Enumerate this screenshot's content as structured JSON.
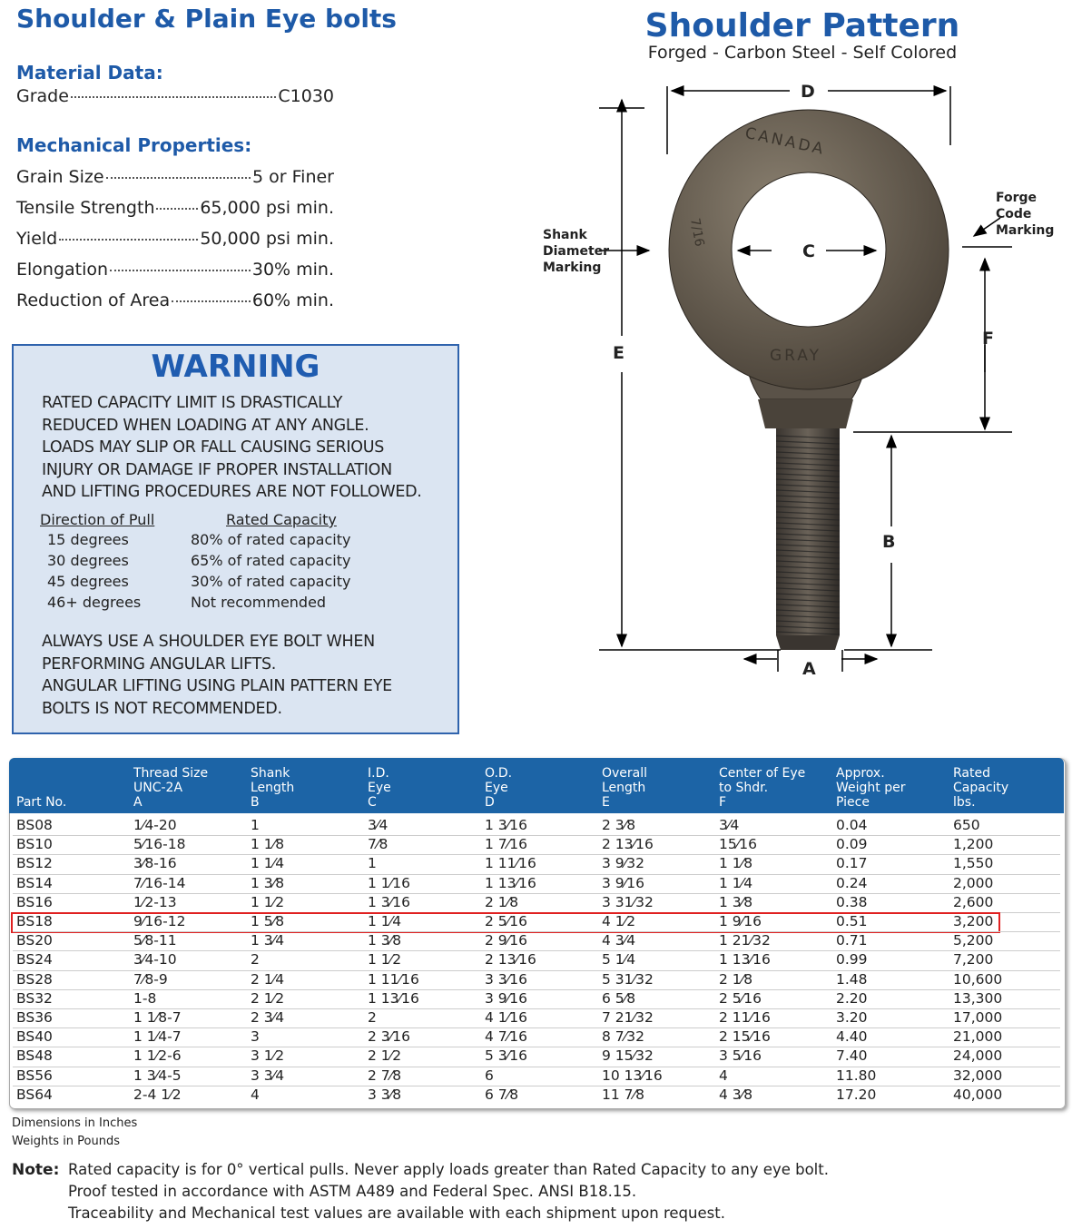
{
  "header": {
    "title": "Shoulder & Plain Eye bolts"
  },
  "material": {
    "heading": "Material Data:",
    "rows": [
      [
        "Grade",
        "C1030"
      ]
    ]
  },
  "mechanical": {
    "heading": "Mechanical Properties:",
    "rows": [
      [
        "Grain Size",
        "5 or Finer"
      ],
      [
        "Tensile Strength",
        "65,000 psi min."
      ],
      [
        "Yield",
        "50,000 psi min."
      ],
      [
        "Elongation",
        "30% min."
      ],
      [
        "Reduction of Area",
        "60% min."
      ]
    ]
  },
  "warning": {
    "title": "WARNING",
    "text": [
      "RATED CAPACITY LIMIT IS DRASTICALLY",
      "REDUCED WHEN LOADING AT ANY ANGLE.",
      "LOADS MAY SLIP OR FALL CAUSING SERIOUS",
      "INJURY OR DAMAGE IF PROPER INSTALLATION",
      "AND LIFTING PROCEDURES ARE NOT FOLLOWED."
    ],
    "columns": [
      "Direction of Pull",
      "Rated Capacity"
    ],
    "rows": [
      [
        "15 degrees",
        "80% of rated capacity"
      ],
      [
        "30 degrees",
        "65% of rated capacity"
      ],
      [
        "45 degrees",
        "30% of rated capacity"
      ],
      [
        "46+ degrees",
        "Not recommended"
      ]
    ],
    "footer": [
      "ALWAYS USE A SHOULDER EYE BOLT WHEN",
      "PERFORMING ANGULAR LIFTS.",
      "ANGULAR LIFTING USING PLAIN PATTERN EYE",
      "BOLTS IS NOT RECOMMENDED."
    ]
  },
  "diagram": {
    "title": "Shoulder Pattern",
    "subtitle": "Forged - Carbon Steel - Self Colored",
    "dimensions": {
      "D": "D",
      "C": "C",
      "E": "E",
      "F": "F",
      "B": "B",
      "A": "A"
    },
    "shank_marking": [
      "Shank",
      "Diameter",
      "Marking"
    ],
    "forge_marking": [
      "Forge",
      "Code",
      "Marking"
    ],
    "casting": {
      "top": "CANADA",
      "bottom": "GRAY",
      "side": "7/16"
    }
  },
  "table": {
    "headers": [
      "Part No.",
      "Thread Size\nUNC-2A\nA",
      "Shank\nLength\nB",
      "I.D.\nEye\nC",
      "O.D.\nEye\nD",
      "Overall\nLength\nE",
      "Center of Eye\nto Shdr.\nF",
      "Approx.\nWeight per\nPiece",
      "Rated\nCapacity\nlbs."
    ],
    "rows": [
      [
        "BS08",
        "1⁄4-20",
        "1",
        "3⁄4",
        "1 3⁄16",
        "2 3⁄8",
        "3⁄4",
        "0.04",
        "650"
      ],
      [
        "BS10",
        "5⁄16-18",
        "1 1⁄8",
        "7⁄8",
        "1 7⁄16",
        "2 13⁄16",
        "15⁄16",
        "0.09",
        "1,200"
      ],
      [
        "BS12",
        "3⁄8-16",
        "1 1⁄4",
        "1",
        "1 11⁄16",
        "3 9⁄32",
        "1 1⁄8",
        "0.17",
        "1,550"
      ],
      [
        "BS14",
        "7⁄16-14",
        "1 3⁄8",
        "1 1⁄16",
        "1 13⁄16",
        "3 9⁄16",
        "1 1⁄4",
        "0.24",
        "2,000"
      ],
      [
        "BS16",
        "1⁄2-13",
        "1 1⁄2",
        "1 3⁄16",
        "2 1⁄8",
        "3 31⁄32",
        "1 3⁄8",
        "0.38",
        "2,600"
      ],
      [
        "BS18",
        "9⁄16-12",
        "1 5⁄8",
        "1 1⁄4",
        "2 5⁄16",
        "4 1⁄2",
        "1 9⁄16",
        "0.51",
        "3,200"
      ],
      [
        "BS20",
        "5⁄8-11",
        "1 3⁄4",
        "1 3⁄8",
        "2 9⁄16",
        "4 3⁄4",
        "1 21⁄32",
        "0.71",
        "5,200"
      ],
      [
        "BS24",
        "3⁄4-10",
        "2",
        "1 1⁄2",
        "2 13⁄16",
        "5 1⁄4",
        "1 13⁄16",
        "0.99",
        "7,200"
      ],
      [
        "BS28",
        "7⁄8-9",
        "2 1⁄4",
        "1 11⁄16",
        "3 3⁄16",
        "5 31⁄32",
        "2 1⁄8",
        "1.48",
        "10,600"
      ],
      [
        "BS32",
        "1-8",
        "2 1⁄2",
        "1 13⁄16",
        "3 9⁄16",
        "6 5⁄8",
        "2 5⁄16",
        "2.20",
        "13,300"
      ],
      [
        "BS36",
        "1 1⁄8-7",
        "2 3⁄4",
        "2",
        "4 1⁄16",
        "7 21⁄32",
        "2 11⁄16",
        "3.20",
        "17,000"
      ],
      [
        "BS40",
        "1 1⁄4-7",
        "3",
        "2 3⁄16",
        "4 7⁄16",
        "8 7⁄32",
        "2 15⁄16",
        "4.40",
        "21,000"
      ],
      [
        "BS48",
        "1 1⁄2-6",
        "3 1⁄2",
        "2 1⁄2",
        "5 3⁄16",
        "9 15⁄32",
        "3 5⁄16",
        "7.40",
        "24,000"
      ],
      [
        "BS56",
        "1 3⁄4-5",
        "3 3⁄4",
        "2 7⁄8",
        "6",
        "10 13⁄16",
        "4",
        "11.80",
        "32,000"
      ],
      [
        "BS64",
        "2-4 1⁄2",
        "4",
        "3 3⁄8",
        "6 7⁄8",
        "11 7⁄8",
        "4 3⁄8",
        "17.20",
        "40,000"
      ]
    ],
    "highlighted_row": 5
  },
  "units": [
    "Dimensions in Inches",
    "Weights in Pounds"
  ],
  "note": {
    "label": "Note:",
    "lines": [
      "Rated capacity is for 0° vertical pulls. Never apply loads greater than Rated Capacity to any eye bolt.",
      "Proof tested in accordance with ASTM A489 and Federal Spec. ANSI B18.15.",
      "Traceability and Mechanical test values are available with each shipment upon request."
    ]
  }
}
